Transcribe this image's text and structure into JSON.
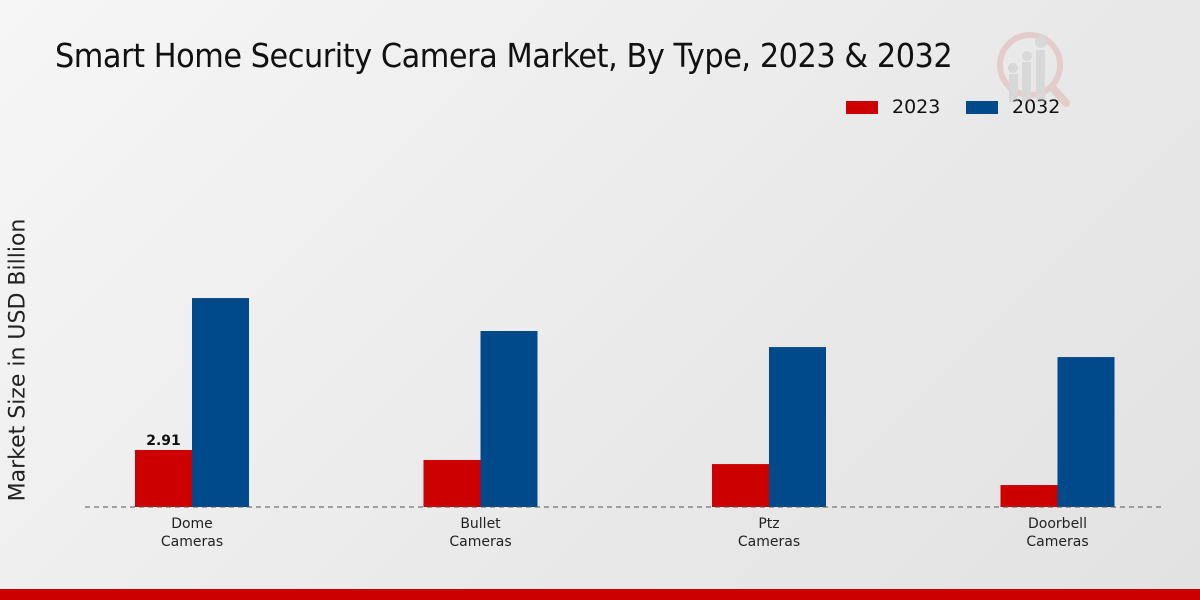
{
  "title": "Smart Home Security Camera Market, By Type, 2023 & 2032",
  "chart_data": {
    "type": "bar",
    "title": "Smart Home Security Camera Market, By Type, 2023 & 2032",
    "xlabel": "",
    "ylabel": "Market Size in USD Billion",
    "categories": [
      "Dome\nCameras",
      "Bullet\nCameras",
      "Ptz\nCameras",
      "Doorbell\nCameras"
    ],
    "series": [
      {
        "name": "2023",
        "color": "#cc0000",
        "values": [
          2.91,
          2.4,
          2.19,
          1.12
        ]
      },
      {
        "name": "2032",
        "color": "#004a8b",
        "values": [
          10.66,
          8.98,
          8.16,
          7.65
        ]
      }
    ],
    "data_labels": [
      {
        "series": 0,
        "index": 0,
        "text": "2.91"
      }
    ],
    "ylim": [
      0,
      15
    ],
    "grid": false,
    "legend_position": "top-right"
  }
}
